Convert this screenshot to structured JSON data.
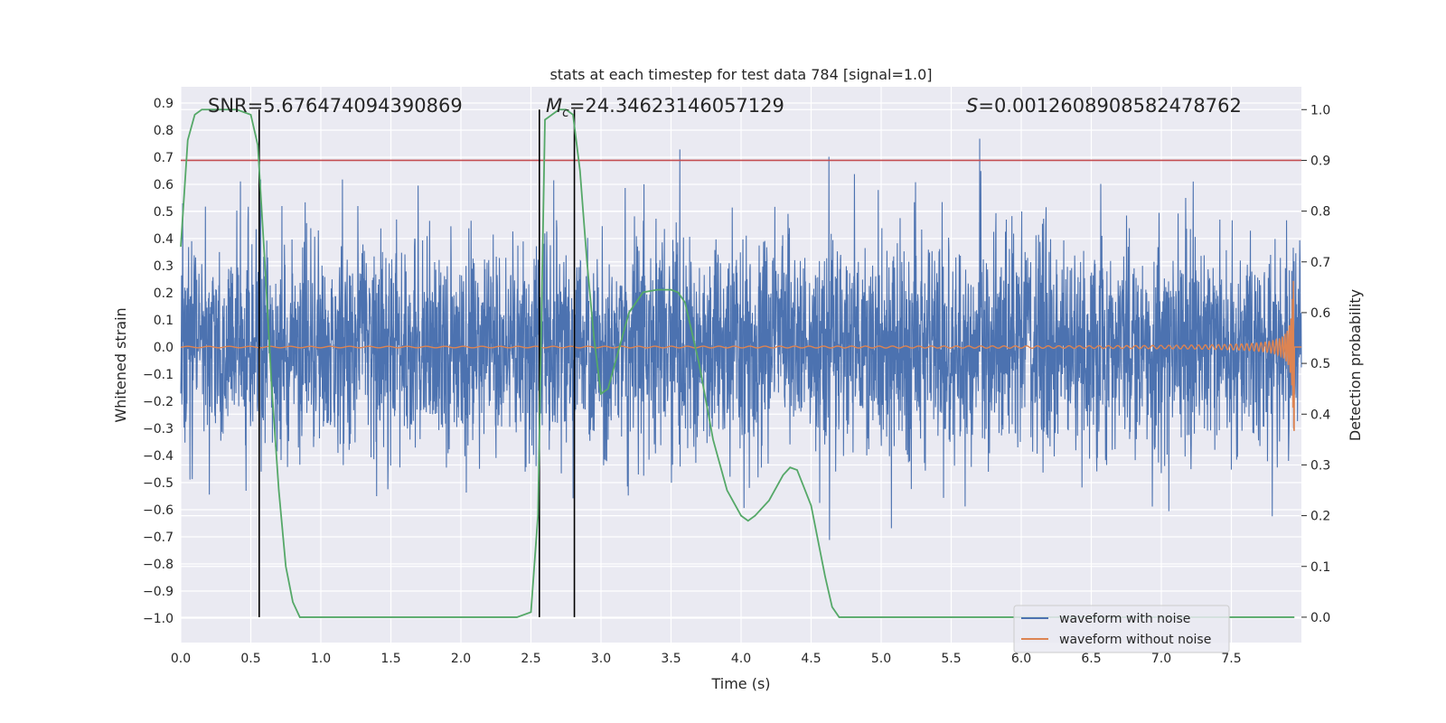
{
  "chart_data": {
    "type": "line",
    "title": "stats at each timestep for test data 784 [signal=1.0]",
    "xlabel": "Time (s)",
    "ylabel": "Whitened strain",
    "y2label": "Detection probability",
    "xlim": [
      0.0,
      8.0
    ],
    "ylim": [
      -1.09,
      0.96
    ],
    "y2lim": [
      -0.05,
      1.045
    ],
    "grid": true,
    "x_ticks": [
      "0.0",
      "0.5",
      "1.0",
      "1.5",
      "2.0",
      "2.5",
      "3.0",
      "3.5",
      "4.0",
      "4.5",
      "5.0",
      "5.5",
      "6.0",
      "6.5",
      "7.0",
      "7.5"
    ],
    "y_ticks": [
      "0.9",
      "0.8",
      "0.7",
      "0.6",
      "0.5",
      "0.4",
      "0.3",
      "0.2",
      "0.1",
      "0.0",
      "−0.1",
      "−0.2",
      "−0.3",
      "−0.4",
      "−0.5",
      "−0.6",
      "−0.7",
      "−0.8",
      "−0.9",
      "−1.0"
    ],
    "y2_ticks": [
      "1.0",
      "0.9",
      "0.8",
      "0.7",
      "0.6",
      "0.5",
      "0.4",
      "0.3",
      "0.2",
      "0.1",
      "0.0"
    ],
    "annotations": {
      "snr": "SNR=5.676474094390869",
      "mc_symbol": "M",
      "mc_subscript": "c",
      "mc_value": "=24.34623146057129",
      "s_symbol": "S",
      "s_value": "=0.0012608908582478762"
    },
    "threshold": {
      "y2": 0.9,
      "color": "#c44e52"
    },
    "vertical_lines": [
      0.56,
      2.56,
      2.81
    ],
    "legend": {
      "placement": "lower-right",
      "entries": [
        {
          "label": "waveform with noise",
          "color": "#4c72b0"
        },
        {
          "label": "waveform without noise",
          "color": "#dd8452"
        }
      ]
    },
    "series": [
      {
        "name": "waveform with noise",
        "axis": "left",
        "color": "#4c72b0",
        "kind": "noise",
        "duration": 8.0,
        "sigma": 0.2,
        "spike_max": 0.88,
        "spike_min": -1.0
      },
      {
        "name": "waveform without noise",
        "axis": "left",
        "color": "#dd8452",
        "kind": "chirp",
        "duration": 8.0,
        "t_coalescence": 7.95,
        "peak_amplitude": 0.31
      },
      {
        "name": "detection probability",
        "axis": "right",
        "color": "#55a868",
        "x": [
          0.0,
          0.05,
          0.1,
          0.15,
          0.2,
          0.3,
          0.4,
          0.5,
          0.55,
          0.6,
          0.65,
          0.7,
          0.75,
          0.8,
          0.85,
          0.9,
          1.0,
          1.5,
          2.0,
          2.4,
          2.5,
          2.55,
          2.6,
          2.65,
          2.7,
          2.75,
          2.8,
          2.85,
          2.9,
          2.95,
          3.0,
          3.05,
          3.1,
          3.2,
          3.3,
          3.4,
          3.5,
          3.55,
          3.6,
          3.7,
          3.8,
          3.9,
          4.0,
          4.05,
          4.1,
          4.2,
          4.3,
          4.35,
          4.4,
          4.5,
          4.6,
          4.65,
          4.7,
          5.0,
          6.0,
          7.0,
          7.5,
          7.8,
          7.95
        ],
        "values": [
          0.73,
          0.94,
          0.99,
          1.0,
          1.0,
          1.0,
          1.0,
          0.99,
          0.93,
          0.7,
          0.45,
          0.25,
          0.1,
          0.03,
          0.0,
          0.0,
          0.0,
          0.0,
          0.0,
          0.0,
          0.01,
          0.2,
          0.98,
          0.99,
          1.0,
          1.0,
          0.99,
          0.88,
          0.7,
          0.55,
          0.44,
          0.45,
          0.5,
          0.6,
          0.64,
          0.645,
          0.645,
          0.64,
          0.62,
          0.5,
          0.35,
          0.25,
          0.2,
          0.19,
          0.2,
          0.23,
          0.28,
          0.295,
          0.29,
          0.22,
          0.08,
          0.02,
          0.0,
          0.0,
          0.0,
          0.0,
          0.0,
          0.0,
          0.0
        ]
      }
    ]
  }
}
